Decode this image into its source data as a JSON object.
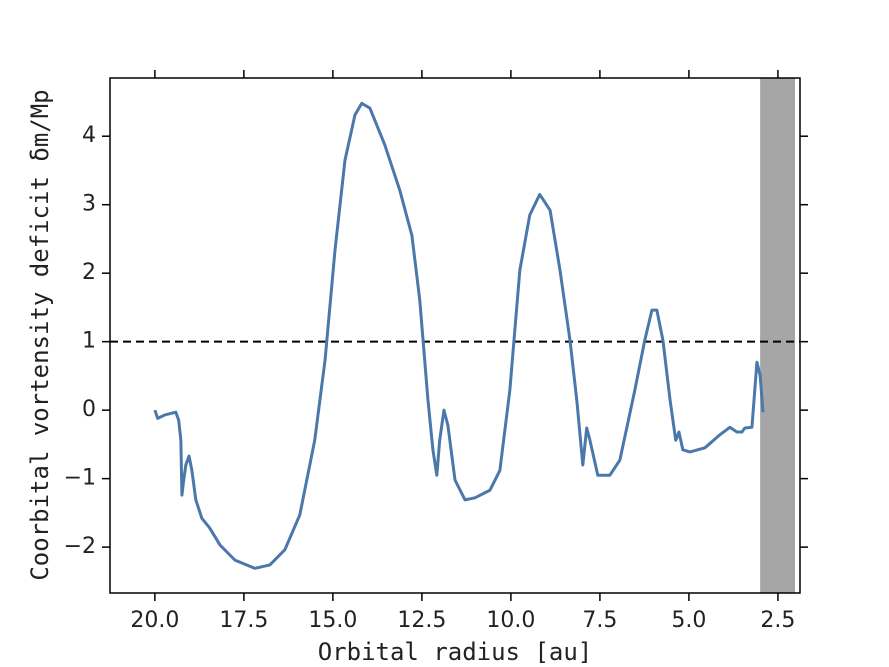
{
  "chart_data": {
    "type": "line",
    "xlabel": "Orbital radius [au]",
    "ylabel": "Coorbital vortensity deficit δm/Mp",
    "xlim": [
      21.26,
      1.88
    ],
    "ylim": [
      -2.67,
      4.85
    ],
    "xticks": [
      {
        "value": 20,
        "label": "20.0"
      },
      {
        "value": 17.5,
        "label": "17.5"
      },
      {
        "value": 15,
        "label": "15.0"
      },
      {
        "value": 12.5,
        "label": "12.5"
      },
      {
        "value": 10,
        "label": "10.0"
      },
      {
        "value": 7.5,
        "label": "7.5"
      },
      {
        "value": 5,
        "label": "5.0"
      },
      {
        "value": 2.5,
        "label": "2.5"
      }
    ],
    "yticks": [
      {
        "value": -2,
        "label": "−2"
      },
      {
        "value": -1,
        "label": "−1"
      },
      0,
      1,
      2,
      3,
      4
    ],
    "hline": 1,
    "hline_color": "#000000",
    "shaded_span": [
      3.0,
      2.02
    ],
    "shade_color": "#a6a6a6",
    "series": [
      {
        "color": "#4a78ab",
        "x": [
          20.0,
          19.92,
          19.72,
          19.41,
          19.33,
          19.27,
          19.24,
          19.19,
          19.13,
          19.04,
          18.96,
          18.85,
          18.68,
          18.46,
          18.17,
          17.75,
          17.19,
          16.77,
          16.35,
          15.93,
          15.51,
          15.22,
          14.94,
          14.66,
          14.38,
          14.19,
          13.96,
          13.54,
          13.12,
          12.78,
          12.56,
          12.33,
          12.19,
          12.08,
          12.0,
          11.88,
          11.77,
          11.57,
          11.29,
          11.01,
          10.59,
          10.31,
          10.03,
          9.75,
          9.47,
          9.19,
          8.9,
          8.62,
          8.34,
          8.15,
          7.98,
          7.87,
          7.78,
          7.56,
          7.22,
          6.94,
          6.52,
          6.24,
          6.04,
          5.9,
          5.73,
          5.53,
          5.37,
          5.28,
          5.17,
          4.97,
          4.55,
          4.13,
          3.85,
          3.65,
          3.51,
          3.43,
          3.23,
          3.09,
          3.0,
          2.92
        ],
        "values": [
          0.0,
          -0.12,
          -0.07,
          -0.03,
          -0.15,
          -0.44,
          -1.24,
          -1.02,
          -0.8,
          -0.67,
          -0.88,
          -1.31,
          -1.58,
          -1.72,
          -1.97,
          -2.19,
          -2.31,
          -2.26,
          -2.04,
          -1.53,
          -0.44,
          0.73,
          2.34,
          3.65,
          4.31,
          4.48,
          4.41,
          3.87,
          3.21,
          2.55,
          1.61,
          0.15,
          -0.58,
          -0.95,
          -0.44,
          0.0,
          -0.22,
          -1.02,
          -1.31,
          -1.28,
          -1.17,
          -0.88,
          0.29,
          2.04,
          2.85,
          3.15,
          2.92,
          2.04,
          1.02,
          0.15,
          -0.8,
          -0.26,
          -0.44,
          -0.95,
          -0.95,
          -0.73,
          0.29,
          1.02,
          1.46,
          1.46,
          1.02,
          0.15,
          -0.44,
          -0.32,
          -0.58,
          -0.61,
          -0.55,
          -0.36,
          -0.25,
          -0.32,
          -0.32,
          -0.26,
          -0.25,
          0.7,
          0.51,
          -0.03
        ]
      }
    ]
  }
}
